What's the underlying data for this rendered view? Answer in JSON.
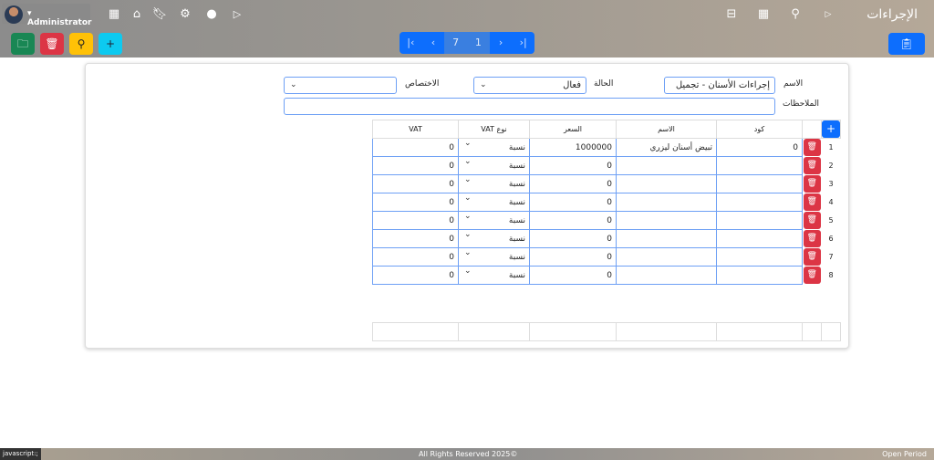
{
  "header": {
    "title": "الإجراءات",
    "user": "Administrator"
  },
  "icons": {
    "left": [
      "apps-icon",
      "home-icon",
      "bookmark-icon",
      "gear-icon",
      "dot-icon",
      "play-icon"
    ],
    "right": [
      "briefcase-icon",
      "grid-icon",
      "search-icon",
      "play-small-icon"
    ]
  },
  "pager": {
    "current": "7",
    "total": "1"
  },
  "form": {
    "name_label": "الاسم",
    "name_value": "إجراءات الأسنان - تجميل",
    "status_label": "الحالة",
    "status_value": "فعال",
    "specialty_label": "الاختصاص",
    "specialty_value": "",
    "notes_label": "الملاحظات",
    "notes_value": ""
  },
  "table": {
    "columns": [
      "كود",
      "الاسم",
      "السعر",
      "نوع VAT",
      "VAT"
    ],
    "rows": [
      {
        "n": "1",
        "code": "0",
        "name": "تبيض أسنان ليزري",
        "price": "1000000",
        "vat_type": "نسبة",
        "vat": "0"
      },
      {
        "n": "2",
        "code": "",
        "name": "",
        "price": "0",
        "vat_type": "نسبة",
        "vat": "0"
      },
      {
        "n": "3",
        "code": "",
        "name": "",
        "price": "0",
        "vat_type": "نسبة",
        "vat": "0"
      },
      {
        "n": "4",
        "code": "",
        "name": "",
        "price": "0",
        "vat_type": "نسبة",
        "vat": "0"
      },
      {
        "n": "5",
        "code": "",
        "name": "",
        "price": "0",
        "vat_type": "نسبة",
        "vat": "0"
      },
      {
        "n": "6",
        "code": "",
        "name": "",
        "price": "0",
        "vat_type": "نسبة",
        "vat": "0"
      },
      {
        "n": "7",
        "code": "",
        "name": "",
        "price": "0",
        "vat_type": "نسبة",
        "vat": "0"
      },
      {
        "n": "8",
        "code": "",
        "name": "",
        "price": "0",
        "vat_type": "نسبة",
        "vat": "0"
      }
    ]
  },
  "footer": {
    "status": "javascript:;",
    "copyright": "All Rights Reserved 2025©",
    "period": "Open Period"
  },
  "colors": {
    "primary": "#0d6efd",
    "danger": "#dc3545",
    "success": "#198754",
    "warning": "#ffc107",
    "info": "#0dcaf0"
  }
}
